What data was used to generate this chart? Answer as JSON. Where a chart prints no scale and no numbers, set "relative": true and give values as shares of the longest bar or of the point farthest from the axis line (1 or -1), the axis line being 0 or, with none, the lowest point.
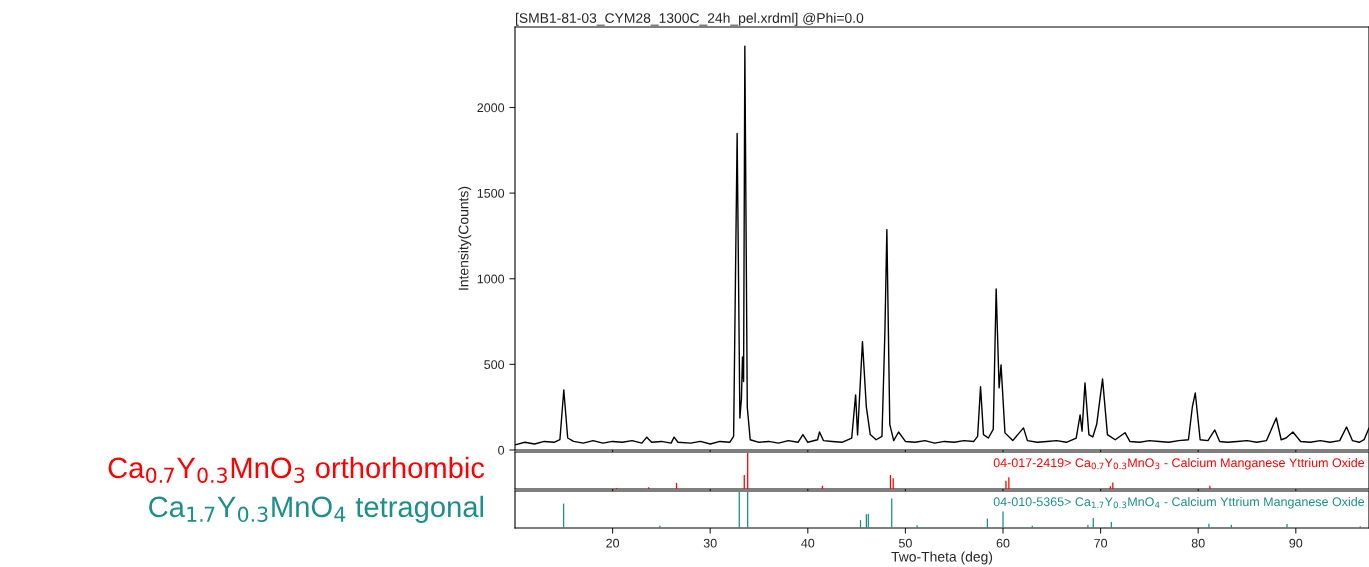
{
  "chart_data": [
    {
      "type": "line",
      "title": "[SMB1-81-03_CYM28_1300C_24h_pel.xrdml] @Phi=0.0",
      "ylabel": "Intensity(Counts)",
      "x": [
        10.0,
        11.0,
        12.0,
        13.0,
        14.0,
        14.6,
        15.0,
        15.4,
        16.0,
        17.0,
        18.0,
        19.0,
        20.0,
        21.0,
        22.0,
        23.0,
        23.5,
        24.0,
        25.0,
        26.0,
        26.3,
        26.7,
        28.0,
        29.0,
        30.0,
        31.0,
        32.0,
        32.4,
        32.76,
        33.04,
        33.2,
        33.31,
        33.42,
        33.55,
        33.8,
        34.1,
        35.0,
        36.0,
        37.0,
        38.0,
        39.0,
        39.5,
        40.0,
        41.0,
        41.2,
        41.6,
        42.5,
        43.5,
        44.5,
        44.9,
        45.1,
        45.6,
        46.0,
        46.4,
        47.0,
        47.6,
        47.9,
        48.1,
        48.4,
        48.8,
        49.3,
        50.0,
        51.0,
        52.0,
        53.0,
        54.0,
        55.0,
        56.0,
        57.0,
        57.4,
        57.7,
        58.0,
        58.5,
        59.0,
        59.3,
        59.6,
        59.8,
        60.2,
        61.0,
        62.1,
        62.5,
        63.5,
        64.5,
        65.5,
        66.5,
        67.5,
        67.9,
        68.1,
        68.4,
        68.8,
        69.2,
        69.6,
        70.2,
        70.7,
        71.5,
        72.5,
        73.0,
        74.0,
        75.0,
        76.0,
        77.0,
        78.0,
        79.0,
        79.4,
        79.7,
        80.2,
        81.0,
        81.7,
        82.2,
        83.0,
        84.0,
        85.0,
        86.0,
        87.0,
        88.0,
        88.5,
        89.0,
        89.7,
        90.5,
        91.5,
        92.5,
        93.5,
        94.5,
        95.2,
        95.8,
        96.5,
        97.0,
        97.5
      ],
      "series": [
        {
          "color": "#000000",
          "values": [
            30,
            45,
            35,
            50,
            45,
            60,
            350,
            70,
            50,
            40,
            55,
            40,
            50,
            45,
            55,
            40,
            75,
            45,
            50,
            40,
            75,
            45,
            40,
            50,
            35,
            50,
            45,
            80,
            1848,
            187,
            300,
            544,
            400,
            2358,
            250,
            60,
            45,
            50,
            40,
            55,
            45,
            90,
            45,
            60,
            105,
            55,
            50,
            45,
            70,
            322,
            88,
            633,
            250,
            90,
            60,
            80,
            690,
            1287,
            150,
            55,
            105,
            50,
            45,
            55,
            40,
            50,
            45,
            55,
            50,
            80,
            370,
            90,
            70,
            120,
            941,
            363,
            497,
            100,
            55,
            129,
            55,
            45,
            50,
            55,
            45,
            70,
            205,
            110,
            392,
            90,
            76,
            150,
            415,
            90,
            60,
            101,
            50,
            45,
            55,
            50,
            45,
            55,
            60,
            251,
            333,
            60,
            55,
            117,
            50,
            45,
            50,
            55,
            45,
            55,
            187,
            60,
            70,
            105,
            50,
            45,
            55,
            45,
            55,
            134,
            55,
            45,
            60,
            129
          ]
        }
      ],
      "xlim": [
        10,
        97.5
      ],
      "ylim": [
        0,
        2470
      ],
      "xticks": [
        20,
        30,
        40,
        50,
        60,
        70,
        80,
        90
      ],
      "yticks": [
        0,
        500,
        1000,
        1500,
        2000
      ],
      "tick_labels": "y",
      "grid": false
    },
    {
      "type": "bar",
      "relative": true,
      "ylabel": "Ca$_{0.7}$Y$_{0.3}$MnO$_{3}$ orthorhombic",
      "annotations": [
        "04-017-2419> Ca$_{0.7}$Y$_{0.3}$MnO$_{3}$ - Calcium Manganese Yttrium Oxide"
      ],
      "x": [
        20.4,
        23.7,
        26.55,
        33.49,
        33.84,
        41.5,
        48.47,
        48.75,
        60.3,
        60.6,
        71.0,
        71.25,
        81.2
      ],
      "series": [
        {
          "color": "#ff0000",
          "values": [
            0.03,
            0.05,
            0.17,
            0.39,
            1.0,
            0.09,
            0.39,
            0.3,
            0.23,
            0.33,
            0.08,
            0.18,
            0.09
          ]
        }
      ],
      "xlim": [
        10,
        97.5
      ],
      "xticks": [
        20,
        30,
        40,
        50,
        60,
        70,
        80,
        90
      ],
      "tick_labels": false
    },
    {
      "type": "bar",
      "relative": true,
      "ylabel": "Ca$_{1.7}$Y$_{0.3}$MnO$_{4}$ tetragonal",
      "xlabel": "Two-Theta (deg)",
      "annotations": [
        "04-010-5365> Ca$_{1.7}$Y$_{0.3}$MnO$_{4}$ - Calcium Yttrium Manganese Oxide"
      ],
      "x": [
        14.98,
        24.84,
        32.98,
        33.84,
        45.4,
        46.0,
        46.2,
        48.6,
        51.2,
        58.4,
        60.0,
        63.0,
        68.7,
        69.25,
        71.1,
        81.1,
        83.4,
        89.1,
        96.6
      ],
      "series": [
        {
          "color": "#1a9088",
          "values": [
            0.68,
            0.06,
            1.0,
            1.0,
            0.22,
            0.38,
            0.4,
            0.82,
            0.08,
            0.26,
            0.46,
            0.06,
            0.09,
            0.28,
            0.17,
            0.12,
            0.09,
            0.11,
            0.05
          ]
        }
      ],
      "xlim": [
        10,
        97.5
      ],
      "xticks": [
        20,
        30,
        40,
        50,
        60,
        70,
        80,
        90
      ],
      "tick_labels": "x"
    }
  ]
}
